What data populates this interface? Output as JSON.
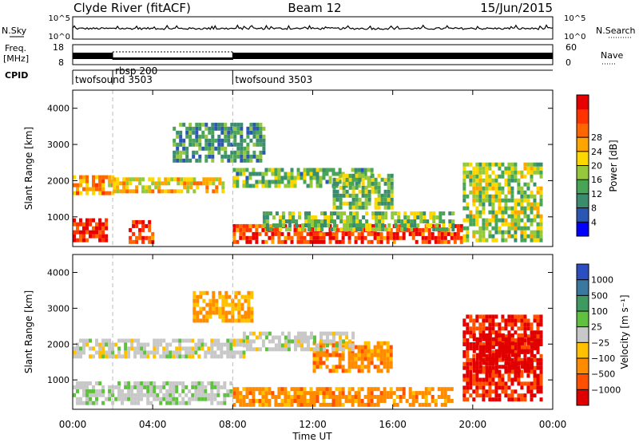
{
  "header": {
    "station": "Clyde River (fitACF)",
    "beam": "Beam 12",
    "date": "15/Jun/2015"
  },
  "top_panels": {
    "nsky_label": "N.Sky",
    "nsearch_label": "N.Search",
    "nsky_ticks": [
      "10^5",
      "10^0"
    ],
    "freq_label_1": "Freq.",
    "freq_label_2": "[MHz]",
    "freq_ticks": [
      "18",
      "8"
    ],
    "nave_label": "Nave",
    "nave_ticks": [
      "60",
      "0"
    ],
    "cpid_label": "CPID",
    "cpid_segments": [
      {
        "name": "twofsound 3503",
        "start_h": 0.0,
        "end_h": 2.0
      },
      {
        "name": "rbsp 200",
        "start_h": 2.0,
        "end_h": 8.0
      },
      {
        "name": "twofsound 3503",
        "start_h": 8.0,
        "end_h": 24.0
      }
    ]
  },
  "chart_data": [
    {
      "type": "heatmap",
      "name": "power",
      "ylabel": "Slant Range [km]",
      "ylim": [
        180,
        4500
      ],
      "yticks": [
        "1000",
        "2000",
        "3000",
        "4000"
      ],
      "xlim": [
        0,
        24
      ],
      "colorbar_label": "Power [dB]",
      "colorbar_ticks": [
        "4",
        "8",
        "12",
        "16",
        "20",
        "24",
        "28"
      ],
      "colorbar_colors": [
        "#0000ff",
        "#2b57b4",
        "#3a8c6e",
        "#48a558",
        "#96c83c",
        "#ffd700",
        "#ffa500",
        "#ff6600",
        "#ff3300",
        "#e60000"
      ],
      "features": [
        {
          "t0": 0.0,
          "t1": 2.0,
          "r0": 1600,
          "r1": 2100,
          "level": 0.65
        },
        {
          "t0": 2.0,
          "t1": 7.5,
          "r0": 1650,
          "r1": 2050,
          "level": 0.6
        },
        {
          "t0": 0.0,
          "t1": 1.6,
          "r0": 300,
          "r1": 900,
          "level": 0.9
        },
        {
          "t0": 2.8,
          "t1": 4.0,
          "r0": 250,
          "r1": 900,
          "level": 0.85
        },
        {
          "t0": 8.0,
          "t1": 19.5,
          "r0": 250,
          "r1": 700,
          "level": 0.85
        },
        {
          "t0": 9.5,
          "t1": 19.0,
          "r0": 600,
          "r1": 1100,
          "level": 0.4
        },
        {
          "t0": 8.0,
          "t1": 15.0,
          "r0": 1800,
          "r1": 2300,
          "level": 0.35
        },
        {
          "t0": 19.5,
          "t1": 23.5,
          "r0": 300,
          "r1": 2500,
          "level": 0.45
        },
        {
          "t0": 5.0,
          "t1": 9.5,
          "r0": 2500,
          "r1": 3600,
          "level": 0.3
        },
        {
          "t0": 13.0,
          "t1": 16.0,
          "r0": 1200,
          "r1": 2100,
          "level": 0.4
        }
      ]
    },
    {
      "type": "heatmap",
      "name": "velocity",
      "ylabel": "Slant Range [km]",
      "ylim": [
        180,
        4500
      ],
      "yticks": [
        "1000",
        "2000",
        "3000",
        "4000"
      ],
      "xlim": [
        0,
        24
      ],
      "xticks": [
        "00:00",
        "04:00",
        "08:00",
        "12:00",
        "16:00",
        "20:00",
        "00:00"
      ],
      "xlabel": "Time UT",
      "colorbar_label": "Velocity [m s⁻¹]",
      "colorbar_ticks": [
        "1000",
        "500",
        "100",
        "25",
        "−25",
        "−100",
        "−500",
        "−1000"
      ],
      "colorbar_colors": [
        "#2b4fc0",
        "#3a78a0",
        "#3f9a62",
        "#60c040",
        "#c8c8c8",
        "#ffc000",
        "#ff8c00",
        "#ff5000",
        "#e00000"
      ],
      "features": [
        {
          "t0": 0.0,
          "t1": 8.5,
          "r0": 1600,
          "r1": 2150,
          "level": 0.0
        },
        {
          "t0": 0.0,
          "t1": 8.0,
          "r0": 300,
          "r1": 900,
          "level": 0.05
        },
        {
          "t0": 8.0,
          "t1": 19.0,
          "r0": 250,
          "r1": 750,
          "level": -0.45
        },
        {
          "t0": 12.0,
          "t1": 16.0,
          "r0": 1200,
          "r1": 2000,
          "level": -0.45
        },
        {
          "t0": 19.5,
          "t1": 23.5,
          "r0": 400,
          "r1": 2800,
          "level": -0.8
        },
        {
          "t0": 20.0,
          "t1": 23.0,
          "r0": 1200,
          "r1": 2200,
          "level": -0.9
        },
        {
          "t0": 8.5,
          "t1": 14.0,
          "r0": 1800,
          "r1": 2300,
          "level": 0.0
        },
        {
          "t0": 6.0,
          "t1": 9.0,
          "r0": 2600,
          "r1": 3400,
          "level": -0.35
        }
      ]
    }
  ]
}
